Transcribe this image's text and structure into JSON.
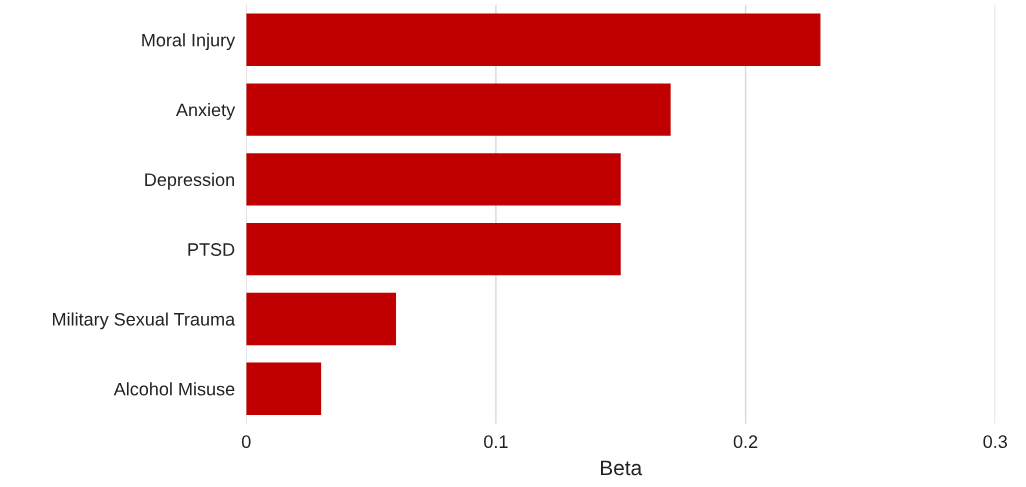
{
  "chart_data": {
    "type": "bar",
    "orientation": "horizontal",
    "xlabel": "Beta",
    "categories": [
      "Moral Injury",
      "Anxiety",
      "Depression",
      "PTSD",
      "Military Sexual Trauma",
      "Alcohol Misuse"
    ],
    "values": [
      0.23,
      0.17,
      0.15,
      0.15,
      0.06,
      0.03
    ],
    "color": "#c00000",
    "xlim": [
      0,
      0.3
    ],
    "xticks": [
      0,
      0.1,
      0.2,
      0.3
    ],
    "grid": "x",
    "legend": false
  }
}
